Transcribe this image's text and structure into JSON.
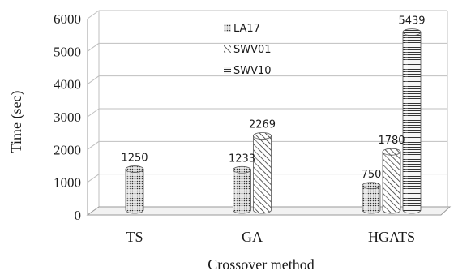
{
  "chart_data": {
    "type": "bar",
    "style": "3d-cylinder",
    "categories": [
      "TS",
      "GA",
      "HGATS"
    ],
    "series": [
      {
        "name": "LA17",
        "values": [
          1250,
          1233,
          750
        ],
        "pattern": "dots"
      },
      {
        "name": "SWV01",
        "values": [
          null,
          2269,
          1780
        ],
        "pattern": "diagonal"
      },
      {
        "name": "SWV10",
        "values": [
          null,
          null,
          5439
        ],
        "pattern": "horizontal"
      }
    ],
    "data_labels": [
      {
        "category": "TS",
        "series": "LA17",
        "text": "1250"
      },
      {
        "category": "GA",
        "series": "LA17",
        "text": "1233"
      },
      {
        "category": "GA",
        "series": "SWV01",
        "text": "2269"
      },
      {
        "category": "HGATS",
        "series": "LA17",
        "text": "750"
      },
      {
        "category": "HGATS",
        "series": "SWV01",
        "text": "1780"
      },
      {
        "category": "HGATS",
        "series": "SWV10",
        "text": "5439"
      }
    ],
    "yticks": [
      "0",
      "1000",
      "2000",
      "3000",
      "4000",
      "5000",
      "6000"
    ],
    "ylim": [
      0,
      6000
    ],
    "xlabel": "Crossover method",
    "ylabel": "Time (sec)",
    "legend_position": "top-center-inside",
    "grid": true,
    "colors": {
      "bar_fill": "#d9d9d9",
      "bar_stroke": "#555555",
      "pattern": "#333333",
      "grid": "#bfbfbf"
    }
  }
}
